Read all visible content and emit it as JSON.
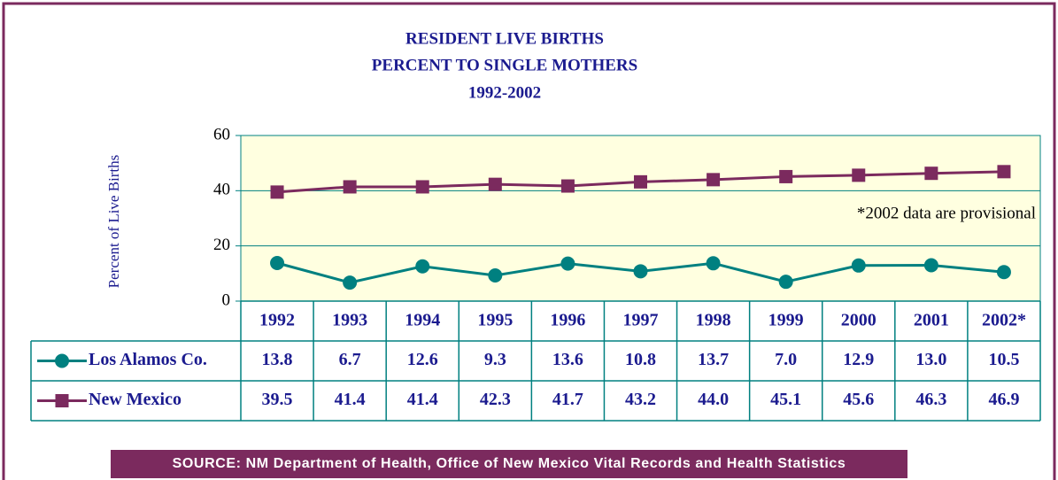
{
  "chart_data": {
    "type": "line",
    "title": [
      "RESIDENT LIVE BIRTHS",
      "PERCENT TO SINGLE MOTHERS",
      "1992-2002"
    ],
    "ylabel": "Percent of Live Births",
    "annotation": "*2002 data are provisional",
    "source": "SOURCE: NM Department of Health, Office of New Mexico Vital Records and Health Statistics",
    "categories": [
      "1992",
      "1993",
      "1994",
      "1995",
      "1996",
      "1997",
      "1998",
      "1999",
      "2000",
      "2001",
      "2002*"
    ],
    "series": [
      {
        "name": "Los Alamos Co.",
        "color": "#008080",
        "marker": "circle",
        "values": [
          13.8,
          6.7,
          12.6,
          9.3,
          13.6,
          10.8,
          13.7,
          7.0,
          12.9,
          13.0,
          10.5
        ],
        "value_labels": [
          "13.8",
          "6.7",
          "12.6",
          "9.3",
          "13.6",
          "10.8",
          "13.7",
          "7.0",
          "12.9",
          "13.0",
          "10.5"
        ]
      },
      {
        "name": "New Mexico",
        "color": "#7b2a5e",
        "marker": "square",
        "values": [
          39.5,
          41.4,
          41.4,
          42.3,
          41.7,
          43.2,
          44.0,
          45.1,
          45.6,
          46.3,
          46.9
        ],
        "value_labels": [
          "39.5",
          "41.4",
          "41.4",
          "42.3",
          "41.7",
          "43.2",
          "44.0",
          "45.1",
          "45.6",
          "46.3",
          "46.9"
        ]
      }
    ],
    "ylim": [
      0,
      60
    ],
    "yticks": [
      0,
      20,
      40,
      60
    ],
    "grid": true
  }
}
